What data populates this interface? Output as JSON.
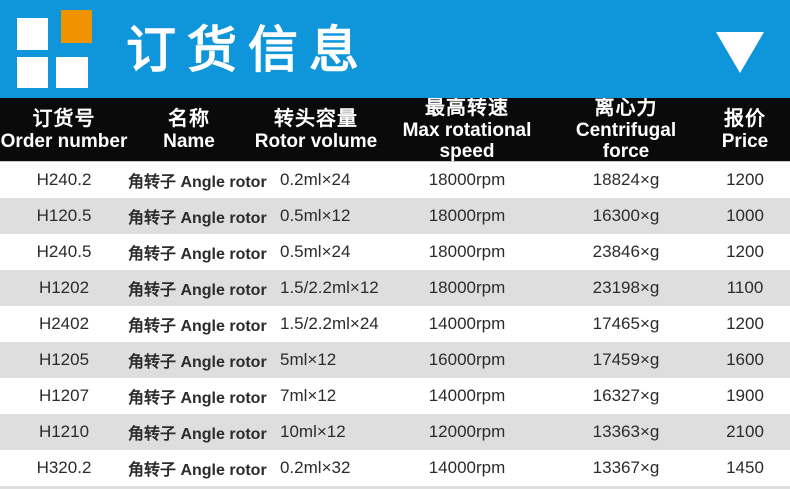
{
  "banner": {
    "title": "订货信息",
    "colors": {
      "background": "#0f96da",
      "logo_orange": "#ef9400",
      "logo_white": "#ffffff",
      "header_black": "#0a0a0a",
      "stripe_gray": "#dedede"
    }
  },
  "table": {
    "header": [
      {
        "zh": "订货号",
        "en": "Order number"
      },
      {
        "zh": "名称",
        "en": "Name"
      },
      {
        "zh": "转头容量",
        "en": "Rotor volume"
      },
      {
        "zh": "最高转速",
        "en": "Max rotational speed"
      },
      {
        "zh": "离心力",
        "en": "Centrifugal force"
      },
      {
        "zh": "报价",
        "en": "Price"
      }
    ],
    "rows": [
      {
        "order": "H240.2",
        "name": "角转子 Angle rotor",
        "volume": "0.2ml×24",
        "speed": "18000rpm",
        "force": "18824×g",
        "price": "1200"
      },
      {
        "order": "H120.5",
        "name": "角转子 Angle rotor",
        "volume": "0.5ml×12",
        "speed": "18000rpm",
        "force": "16300×g",
        "price": "1000"
      },
      {
        "order": "H240.5",
        "name": "角转子 Angle rotor",
        "volume": "0.5ml×24",
        "speed": "18000rpm",
        "force": "23846×g",
        "price": "1200"
      },
      {
        "order": "H1202",
        "name": "角转子 Angle rotor",
        "volume": "1.5/2.2ml×12",
        "speed": "18000rpm",
        "force": "23198×g",
        "price": "1100"
      },
      {
        "order": "H2402",
        "name": "角转子 Angle rotor",
        "volume": "1.5/2.2ml×24",
        "speed": "14000rpm",
        "force": "17465×g",
        "price": "1200"
      },
      {
        "order": "H1205",
        "name": "角转子 Angle rotor",
        "volume": "5ml×12",
        "speed": "16000rpm",
        "force": "17459×g",
        "price": "1600"
      },
      {
        "order": "H1207",
        "name": "角转子 Angle rotor",
        "volume": "7ml×12",
        "speed": "14000rpm",
        "force": "16327×g",
        "price": "1900"
      },
      {
        "order": "H1210",
        "name": "角转子 Angle rotor",
        "volume": "10ml×12",
        "speed": "12000rpm",
        "force": "13363×g",
        "price": "2100"
      },
      {
        "order": "H320.2",
        "name": "角转子 Angle rotor",
        "volume": "0.2ml×32",
        "speed": "14000rpm",
        "force": "13367×g",
        "price": "1450"
      }
    ]
  }
}
